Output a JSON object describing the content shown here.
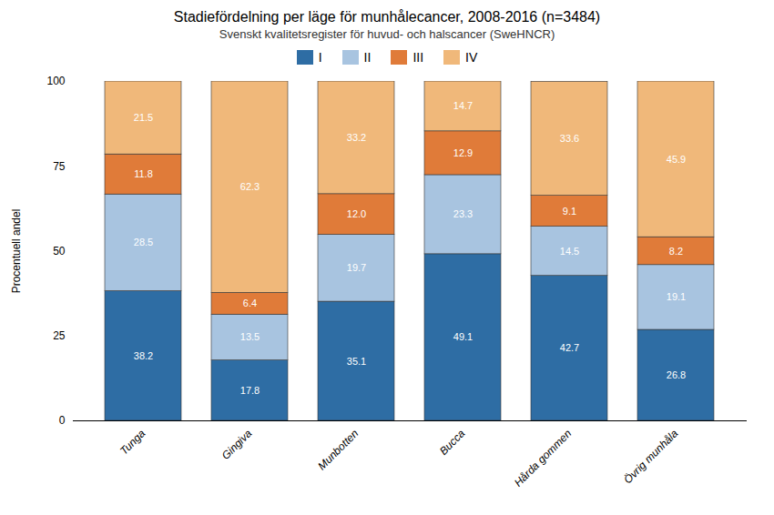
{
  "chart_data": {
    "type": "bar",
    "stacked": true,
    "title": "Stadiefördelning per läge för munhålecancer, 2008-2016 (n=3484)",
    "subtitle": "Svenskt kvalitetsregister för huvud- och halscancer (SweHNCR)",
    "categories": [
      "Tunga",
      "Gingiva",
      "Munbotten",
      "Bucca",
      "Hårda gommen",
      "Övrig munhåla"
    ],
    "series": [
      {
        "name": "I",
        "color": "#2e6da4",
        "values": [
          38.2,
          17.8,
          35.1,
          49.1,
          42.7,
          26.8
        ],
        "value_labels": [
          "38.2",
          "17.8",
          "35.1",
          "49.1",
          "42.7",
          "26.8"
        ]
      },
      {
        "name": "II",
        "color": "#a8c4e0",
        "values": [
          28.5,
          13.5,
          19.7,
          23.3,
          14.5,
          19.1
        ],
        "value_labels": [
          "28.5",
          "13.5",
          "19.7",
          "23.3",
          "14.5",
          "19.1"
        ]
      },
      {
        "name": "III",
        "color": "#e07b39",
        "values": [
          11.8,
          6.4,
          12.0,
          12.9,
          9.1,
          8.2
        ],
        "value_labels": [
          "11.8",
          "6.4",
          "12.0",
          "12.9",
          "9.1",
          "8.2"
        ]
      },
      {
        "name": "IV",
        "color": "#f0b87a",
        "values": [
          21.5,
          62.3,
          33.2,
          14.7,
          33.6,
          45.9
        ],
        "value_labels": [
          "21.5",
          "62.3",
          "33.2",
          "14.7",
          "33.6",
          "45.9"
        ]
      }
    ],
    "ylabel": "Procentuell andel",
    "ylim": [
      0,
      100
    ],
    "yticks": [
      0,
      25,
      50,
      75,
      100
    ],
    "grid": false,
    "legend": "top",
    "data_labels": true
  }
}
